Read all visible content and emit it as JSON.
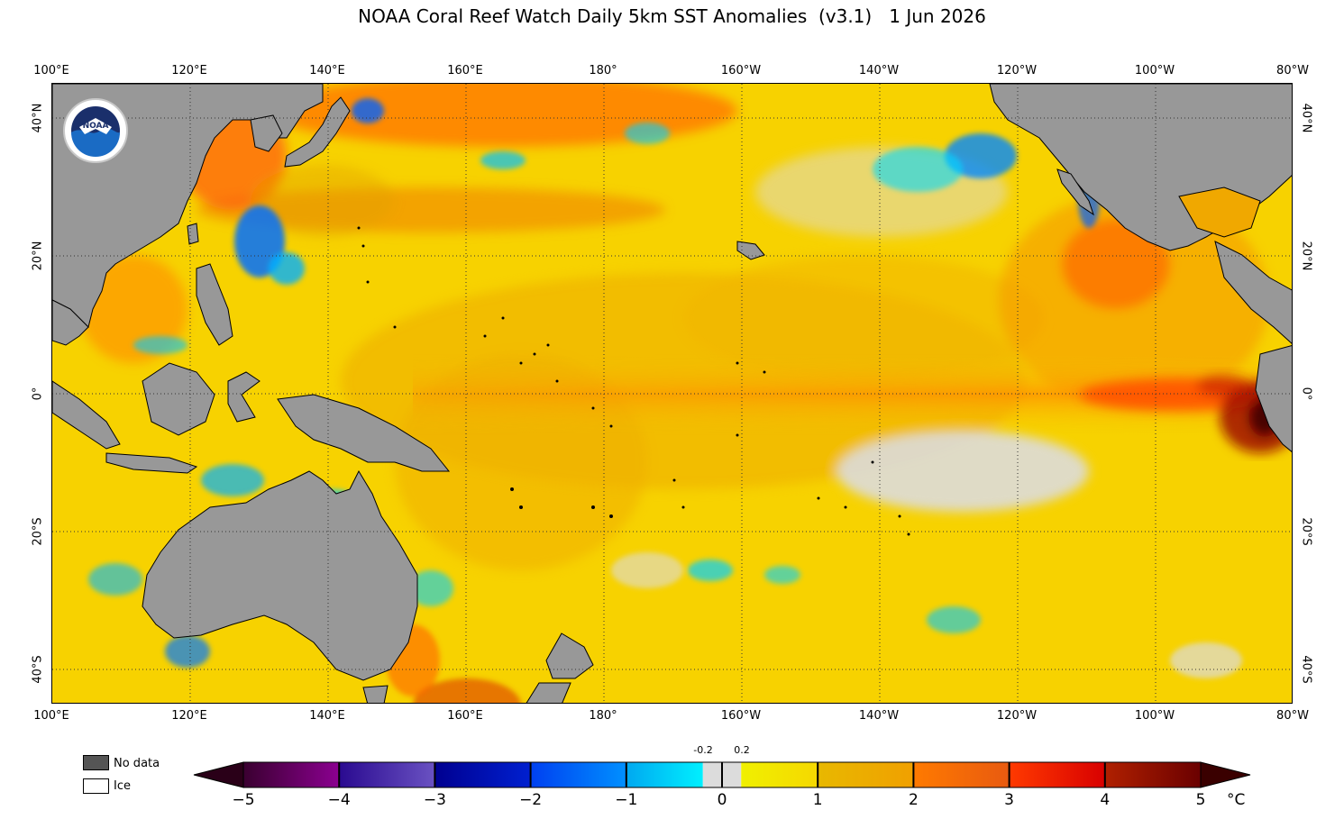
{
  "title": "NOAA Coral Reef Watch Daily 5km SST Anomalies  (v3.1)   1 Jun 2026",
  "longitude_labels": [
    "100°E",
    "120°E",
    "140°E",
    "160°E",
    "180°",
    "160°W",
    "140°W",
    "120°W",
    "100°W",
    "80°W"
  ],
  "latitude_labels_left": [
    "40°N",
    "20°N",
    "0°",
    "20°S",
    "40°S"
  ],
  "latitude_labels_right": [
    "40°N",
    "20°N",
    "0°",
    "20°S",
    "40°S"
  ],
  "logo_text": "NOAA",
  "legend": {
    "no_data": "No data",
    "ice": "Ice",
    "no_data_color": "#555555",
    "ice_color": "#ffffff"
  },
  "colorbar": {
    "ticks": [
      "−5",
      "−4",
      "−3",
      "−2",
      "−1",
      "0",
      "1",
      "2",
      "3",
      "4",
      "5"
    ],
    "small_labels": [
      "-0.2",
      "0.2"
    ],
    "unit": "°C",
    "segments": [
      {
        "from": -5,
        "to": -4,
        "c1": "#3a0030",
        "c2": "#8b0090"
      },
      {
        "from": -4,
        "to": -3,
        "c1": "#2a0a90",
        "c2": "#6a52c2"
      },
      {
        "from": -3,
        "to": -2,
        "c1": "#000090",
        "c2": "#0020d0"
      },
      {
        "from": -2,
        "to": -1,
        "c1": "#0040f0",
        "c2": "#0090ff"
      },
      {
        "from": -1,
        "to": -0.2,
        "c1": "#00a8f0",
        "c2": "#00f0ff"
      },
      {
        "from": -0.2,
        "to": 0.2,
        "c1": "#dcdcdc",
        "c2": "#dcdcdc"
      },
      {
        "from": 0.2,
        "to": 1,
        "c1": "#f0f000",
        "c2": "#f5d800"
      },
      {
        "from": 1,
        "to": 2,
        "c1": "#e8b800",
        "c2": "#f0a000"
      },
      {
        "from": 2,
        "to": 3,
        "c1": "#ff7a00",
        "c2": "#e85a10"
      },
      {
        "from": 3,
        "to": 4,
        "c1": "#ff3a00",
        "c2": "#d80000"
      },
      {
        "from": 4,
        "to": 5,
        "c1": "#b02000",
        "c2": "#6a0000"
      }
    ],
    "extend_low_color": "#2a0018",
    "extend_high_color": "#3a0000"
  },
  "colors": {
    "land": "#989898",
    "ocean_base": "#f7d200",
    "grid": "#333333"
  }
}
